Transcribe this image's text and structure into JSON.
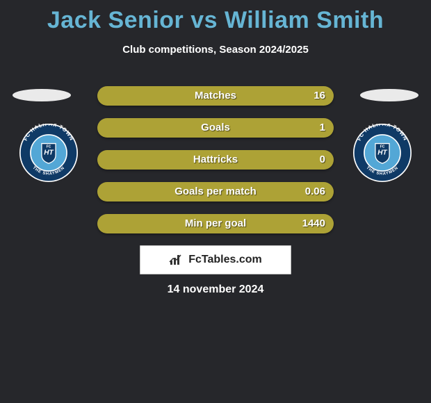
{
  "title": "Jack Senior vs William Smith",
  "title_color": "#66b5d4",
  "subtitle": "Club competitions, Season 2024/2025",
  "text_color": "#ffffff",
  "background_color": "#26272b",
  "bar_color": "#ada236",
  "stats": [
    {
      "label": "Matches",
      "value": "16"
    },
    {
      "label": "Goals",
      "value": "1"
    },
    {
      "label": "Hattricks",
      "value": "0"
    },
    {
      "label": "Goals per match",
      "value": "0.06"
    },
    {
      "label": "Min per goal",
      "value": "1440"
    }
  ],
  "logo_text": "FcTables.com",
  "date": "14 november 2024",
  "badge": {
    "outer_ring": "#0f3a66",
    "inner_ring": "#ffffff",
    "inner_bg": "#53a7d6",
    "text_top": "FC HALIFAX TOWN",
    "text_bottom": "THE SHAYMEN",
    "center_text": "HT"
  }
}
